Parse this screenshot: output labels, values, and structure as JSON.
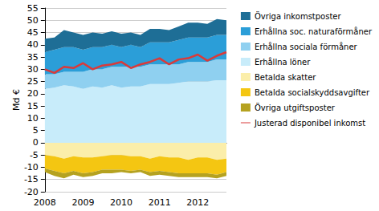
{
  "chart_data": {
    "type": "area",
    "stacked": true,
    "grid": true,
    "legend": "right",
    "y_label": "Md €",
    "categories": [
      "2008",
      null,
      null,
      null,
      "2009",
      null,
      null,
      null,
      "2010",
      null,
      null,
      null,
      "2011",
      null,
      null,
      null,
      "2012",
      null,
      null,
      null
    ],
    "ylim": [
      -20,
      55
    ],
    "yticks": [
      -20,
      -15,
      -10,
      -5,
      0,
      5,
      10,
      15,
      20,
      25,
      30,
      35,
      40,
      45,
      50,
      55
    ],
    "series": [
      {
        "name": "Övriga inkomstposter",
        "color": "#1e6e96",
        "values": [
          5.5,
          5,
          7,
          6,
          6,
          6,
          5.5,
          5.5,
          5.5,
          5,
          5,
          5.5,
          5.5,
          5,
          5.5,
          6,
          6,
          5.5,
          6.5,
          6
        ]
      },
      {
        "name": "Erhållna soc. naturaförmåner",
        "color": "#2b9ed8",
        "values": [
          9,
          10,
          10,
          10,
          9,
          9,
          9,
          9,
          8,
          9,
          8,
          9,
          9,
          9,
          10,
          10,
          10,
          10,
          10,
          10
        ]
      },
      {
        "name": "Erhållna sociala förmåner",
        "color": "#8fd0f0",
        "values": [
          6,
          5.5,
          5.5,
          6,
          7,
          7,
          7.5,
          7.5,
          8.5,
          8,
          8,
          8,
          8,
          8,
          7.5,
          8,
          8,
          8,
          8.5,
          8.5
        ]
      },
      {
        "name": "Erhållna löner",
        "color": "#c8ecfa",
        "values": [
          22,
          22.5,
          23.5,
          23,
          22,
          23,
          22.5,
          23.5,
          22.5,
          23,
          23,
          24,
          24,
          24,
          24.5,
          25,
          25,
          25,
          25.5,
          25.5
        ]
      },
      {
        "name": "Betalda skatter",
        "color": "#fbeeaa",
        "values": [
          -5,
          -5.5,
          -6.5,
          -5.5,
          -6,
          -6,
          -5.5,
          -5,
          -5,
          -5.5,
          -5.5,
          -6.5,
          -5.5,
          -6,
          -6,
          -7,
          -6,
          -6,
          -7,
          -6.5
        ]
      },
      {
        "name": "Betalda socialskyddsavgifter",
        "color": "#f4c612",
        "values": [
          -5.5,
          -6,
          -6,
          -6,
          -6.5,
          -6,
          -5.5,
          -6,
          -6,
          -6,
          -5.5,
          -5.5,
          -6,
          -6,
          -6.5,
          -5.5,
          -6.5,
          -6.5,
          -6,
          -5.5
        ]
      },
      {
        "name": "Övriga utgiftsposter",
        "color": "#b5a220",
        "values": [
          -1.5,
          -2,
          -2,
          -1.5,
          -1.5,
          -1.5,
          -1.5,
          -1.5,
          -1,
          -1,
          -1,
          -1.5,
          -1.5,
          -1.5,
          -1.5,
          -1.5,
          -1.5,
          -1.5,
          -1.5,
          -1.5
        ]
      },
      {
        "name": "Justerad disponibel inkomst",
        "type": "line",
        "color": "#d93a3a",
        "values": [
          30,
          28.5,
          31,
          30.5,
          32.5,
          30,
          31.5,
          32,
          33,
          30.5,
          32,
          33,
          34.5,
          32,
          34,
          34.5,
          36,
          33.5,
          35.5,
          37
        ]
      }
    ]
  }
}
